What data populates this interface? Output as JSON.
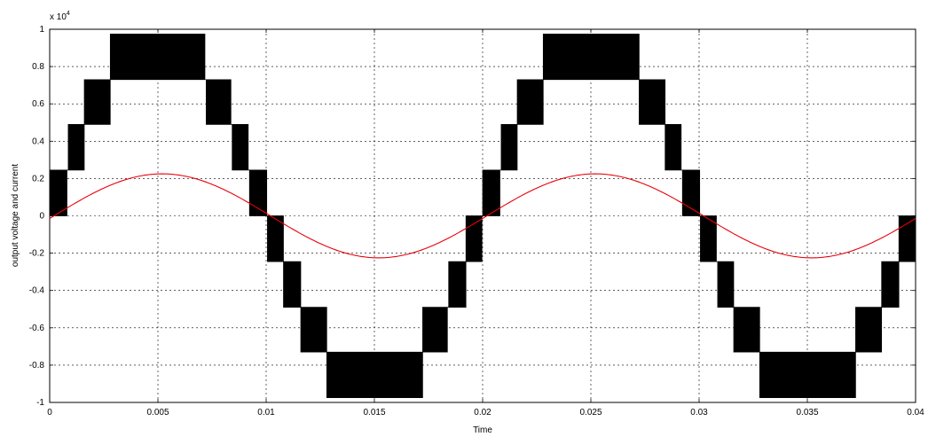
{
  "chart_data": {
    "type": "line",
    "title": "",
    "xlabel": "Time",
    "ylabel": "output voltage and current",
    "y_multiplier": "x 10",
    "y_multiplier_exp": "4",
    "xlim": [
      0,
      0.04
    ],
    "ylim": [
      -1,
      1
    ],
    "grid": true,
    "x_ticks": [
      "0",
      "0.005",
      "0.01",
      "0.015",
      "0.02",
      "0.025",
      "0.03",
      "0.035",
      "0.04"
    ],
    "y_ticks": [
      "1",
      "0.8",
      "0.6",
      "0.4",
      "0.2",
      "0",
      "-0.2",
      "-0.4",
      "-0.6",
      "-0.8",
      "-1"
    ],
    "series": [
      {
        "kind": "multilevel-pwm-voltage",
        "color": "#000000",
        "levels_per_unit": [
          0,
          0.245,
          0.49,
          0.73,
          0.975
        ],
        "level_transition_times": [
          0.0008,
          0.0016,
          0.0028,
          0.0072,
          0.0084,
          0.0092,
          0.01
        ],
        "period": 0.02,
        "amplitude": 0.975
      },
      {
        "kind": "load-current",
        "color": "#e8000b",
        "amplitude": 0.225,
        "frequency": 50,
        "phase_lag": 0.0002
      }
    ]
  }
}
